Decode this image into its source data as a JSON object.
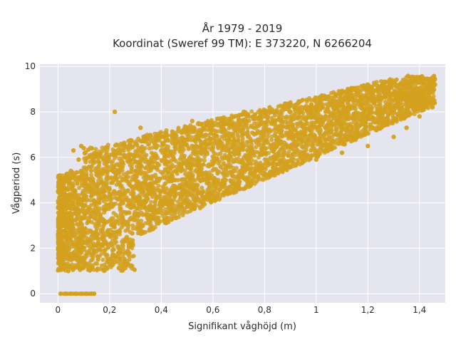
{
  "chart_data": {
    "type": "scatter",
    "title": [
      "År 1979 - 2019",
      "Koordinat (Sweref 99 TM): E 373220, N 6266204"
    ],
    "xlabel": "Signifikant våghöjd (m)",
    "ylabel": "Vågperiod (s)",
    "xlim": [
      -0.07,
      1.5
    ],
    "ylim": [
      -0.4,
      10.1
    ],
    "xticks": [
      0,
      0.2,
      0.4,
      0.6,
      0.8,
      1,
      1.2,
      1.4
    ],
    "xtick_labels": [
      "0",
      "0,2",
      "0,4",
      "0,6",
      "0,8",
      "1",
      "1,2",
      "1,4"
    ],
    "yticks": [
      0,
      2,
      4,
      6,
      8,
      10
    ],
    "ytick_labels": [
      "0",
      "2",
      "4",
      "6",
      "8",
      "10"
    ],
    "grid": true,
    "colors": {
      "marker": "#d4a11e",
      "background": "#e5e5ef",
      "grid": "#ffffff"
    },
    "series": [
      {
        "x": [
          0.01,
          0.03,
          0.05,
          0.07,
          0.09,
          0.11,
          0.13,
          0.14,
          0.02,
          0.02,
          0.03,
          0.04,
          0.05,
          0.06,
          0.08,
          0.09,
          0.1,
          0.11,
          0.13,
          0.15,
          0.18,
          0.2,
          0.22,
          0.25,
          0.28,
          0.06,
          0.07,
          0.08,
          0.1,
          0.12,
          0.14,
          0.16,
          0.18,
          0.2,
          0.25,
          0.3,
          0.35,
          0.4,
          0.5,
          0.04,
          0.08,
          0.12,
          0.15,
          0.2,
          0.25,
          0.3,
          0.35,
          0.4,
          0.45,
          0.5,
          0.55,
          0.6,
          0.7,
          0.3,
          0.4,
          0.5,
          0.6,
          0.7,
          0.8,
          0.9,
          1.0,
          1.1,
          1.2,
          1.3,
          1.35,
          1.4,
          1.45,
          0.5,
          0.6,
          0.7,
          0.8,
          0.9,
          1.0,
          1.1,
          1.2,
          1.3,
          1.35,
          1.4,
          1.45,
          0.1,
          0.15,
          0.2,
          0.28,
          0.35,
          0.45,
          0.55,
          0.65,
          0.75,
          0.85,
          0.95,
          1.05,
          1.15,
          1.25,
          1.32,
          1.38,
          1.42,
          1.46,
          0.22,
          0.32,
          0.42,
          0.52,
          0.62,
          0.72,
          0.82,
          0.92,
          1.02,
          1.12,
          1.22,
          1.3
        ],
        "y": [
          0,
          0,
          0,
          0,
          0,
          0,
          0,
          0,
          1.2,
          2.5,
          3.8,
          4.6,
          5.4,
          6.3,
          5.9,
          6.5,
          6.4,
          5.2,
          4.6,
          4.0,
          3.7,
          4.4,
          5.1,
          5.8,
          6.1,
          1.1,
          1.6,
          2.2,
          2.8,
          3.2,
          3.6,
          4.0,
          4.3,
          4.6,
          5.0,
          5.4,
          5.8,
          6.3,
          6.8,
          1.0,
          1.3,
          1.8,
          2.1,
          2.6,
          3.1,
          3.4,
          3.8,
          4.1,
          4.5,
          4.9,
          5.3,
          5.7,
          6.4,
          6.6,
          6.9,
          7.2,
          7.4,
          7.6,
          7.8,
          8.0,
          8.2,
          8.4,
          8.6,
          8.8,
          9.1,
          9.3,
          9.5,
          3.9,
          4.5,
          4.9,
          5.3,
          5.6,
          5.9,
          6.2,
          6.5,
          6.9,
          7.3,
          7.8,
          8.2,
          2.0,
          2.6,
          3.2,
          3.8,
          4.4,
          5.0,
          5.6,
          6.0,
          6.4,
          6.8,
          7.1,
          7.4,
          7.7,
          8.0,
          8.3,
          8.6,
          8.9,
          9.2,
          8.0,
          7.3,
          7.0,
          7.6,
          7.7,
          8.0,
          8.2,
          8.3,
          8.5,
          8.7,
          8.6,
          8.5
        ]
      }
    ]
  }
}
